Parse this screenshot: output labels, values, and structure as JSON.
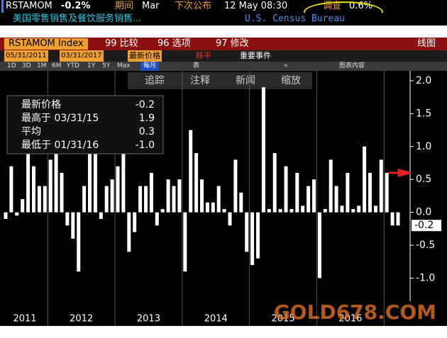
{
  "header": {
    "ticker": "RSTAMOM",
    "change": "-0.2%",
    "period_label": "期间",
    "period": "Mar",
    "next_label": "下次公布",
    "next_date": "12 May 08:30",
    "survey_label": "调查",
    "survey": "0.6%",
    "description": "美国零售销售及餐饮服务销售...",
    "source": "U.S. Census Bureau",
    "security": "RSTAMOM Index",
    "menu_compare": "99 比较",
    "menu_options": "96 选项",
    "menu_edit": "97 修改",
    "chart_kind": "线图",
    "start_date": "05/31/2011",
    "end_date": "03/31/2017",
    "price_field": "最新价格",
    "moving_avg": "移平",
    "events": "重要事件",
    "periods": [
      "1D",
      "3D",
      "1M",
      "6M",
      "YTD",
      "1Y",
      "5Y",
      "Max"
    ],
    "frequency": "每月",
    "table": "表",
    "chart_content": "图表内容",
    "tools": [
      "追踪",
      "注释",
      "新闻",
      "缩放"
    ]
  },
  "legend": [
    {
      "label": "最新价格",
      "value": "-0.2"
    },
    {
      "label": "最高于 03/31/15",
      "value": "1.9"
    },
    {
      "label": "平均",
      "value": "0.3"
    },
    {
      "label": "最低于 01/31/16",
      "value": "-1.0"
    }
  ],
  "watermark": "GOLD678.COM",
  "chart_data": {
    "type": "bar",
    "color": "#ffffff",
    "categories": [
      "2011",
      null,
      null,
      null,
      null,
      null,
      null,
      null,
      "2012",
      null,
      null,
      null,
      null,
      null,
      null,
      null,
      null,
      null,
      null,
      null,
      "2013",
      null,
      null,
      null,
      null,
      null,
      null,
      null,
      null,
      null,
      null,
      null,
      "2014",
      null,
      null,
      null,
      null,
      null,
      null,
      null,
      null,
      null,
      null,
      null,
      "2015",
      null,
      null,
      null,
      null,
      null,
      null,
      null,
      null,
      null,
      null,
      null,
      "2016",
      null,
      null,
      null,
      null,
      null,
      null,
      null,
      null,
      null,
      null,
      null,
      null,
      null,
      null
    ],
    "values": [
      -0.1,
      0.7,
      -0.05,
      0.2,
      0.9,
      0.7,
      0.4,
      0.4,
      0.8,
      1.0,
      0.6,
      -0.2,
      -0.4,
      -0.9,
      0.4,
      1.1,
      1.1,
      -0.1,
      0.4,
      0.5,
      0.7,
      1.0,
      -0.6,
      -0.3,
      0.4,
      0.4,
      0.6,
      -0.2,
      0.05,
      0.5,
      0.4,
      0.5,
      -0.9,
      1.25,
      0.9,
      0.5,
      0.15,
      0.15,
      0.4,
      0.05,
      -0.2,
      0.8,
      0.3,
      -0.6,
      -0.8,
      -0.7,
      1.9,
      0.05,
      0.9,
      0.05,
      0.7,
      0.05,
      0.6,
      0.1,
      0.4,
      0.5,
      -1.0,
      0.05,
      0.8,
      0.4,
      0.1,
      0.6,
      0.05,
      0.1,
      1.0,
      0.6,
      0.1,
      0.8,
      0.6,
      -0.2,
      -0.2
    ],
    "ylim": [
      -1.35,
      2.15
    ],
    "yticks": [
      {
        "value": 2.0,
        "label": "2.0"
      },
      {
        "value": 1.5,
        "label": "1.5"
      },
      {
        "value": 1.0,
        "label": "1.0"
      },
      {
        "value": 0.5,
        "label": "0.5"
      },
      {
        "value": 0.0,
        "label": "0.0"
      },
      {
        "value": -0.5,
        "label": "-0.5"
      },
      {
        "value": -1.0,
        "label": "-1.0"
      }
    ],
    "last_tag": "-0.2",
    "survey_marker": 0.6
  }
}
